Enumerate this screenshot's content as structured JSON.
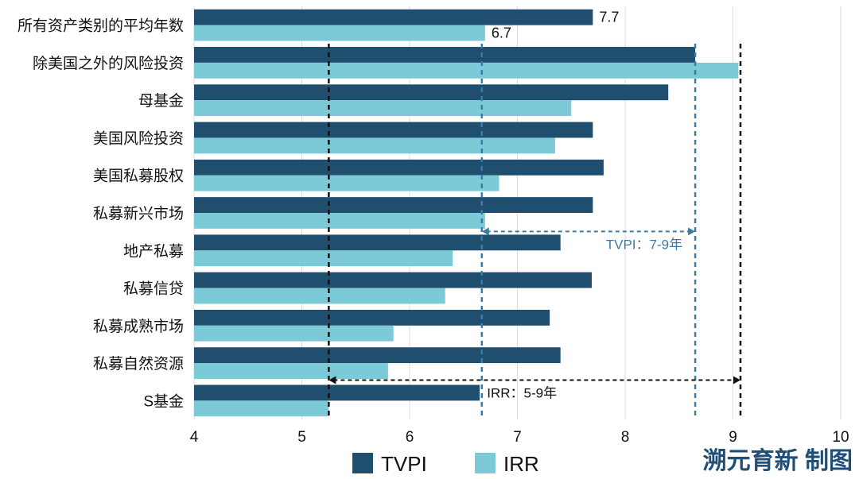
{
  "chart_data": {
    "type": "bar",
    "orientation": "horizontal",
    "categories": [
      "所有资产类别的平均年数",
      "除美国之外的风险投资",
      "母基金",
      "美国风险投资",
      "美国私募股权",
      "私募新兴市场",
      "地产私募",
      "私募信贷",
      "私募成熟市场",
      "私募自然资源",
      "S基金"
    ],
    "series": [
      {
        "name": "TVPI",
        "color": "#1f4e6e",
        "values": [
          7.7,
          8.65,
          8.4,
          7.7,
          7.8,
          7.7,
          7.4,
          7.69,
          7.3,
          7.4,
          6.65
        ]
      },
      {
        "name": "IRR",
        "color": "#7ccad8",
        "values": [
          6.7,
          9.05,
          7.5,
          7.35,
          6.83,
          6.7,
          6.4,
          6.33,
          5.85,
          5.8,
          5.25
        ]
      }
    ],
    "data_labels": [
      {
        "series": "TVPI",
        "category_index": 0,
        "text": "7.7"
      },
      {
        "series": "IRR",
        "category_index": 0,
        "text": "6.7"
      }
    ],
    "xlim": [
      4,
      10
    ],
    "xticks": [
      "4",
      "5",
      "6",
      "7",
      "8",
      "9",
      "10"
    ],
    "grid": "vertical",
    "legend": {
      "position": "bottom",
      "entries": [
        "TVPI",
        "IRR"
      ]
    },
    "annotations": [
      {
        "label": "TVPI：7-9年",
        "from": 6.67,
        "to": 8.65,
        "color": "#3a7ca5",
        "row_index": 6
      },
      {
        "label": "IRR：5-9年",
        "from": 5.25,
        "to": 9.07,
        "color": "#111111",
        "row_index": 10
      }
    ],
    "reference_lines": [
      {
        "x": 5.25,
        "color": "#111111"
      },
      {
        "x": 6.67,
        "color": "#3a7ca5"
      },
      {
        "x": 8.65,
        "color": "#3a7ca5"
      },
      {
        "x": 9.07,
        "color": "#111111"
      }
    ]
  },
  "brand_text": "溯元育新 制图"
}
